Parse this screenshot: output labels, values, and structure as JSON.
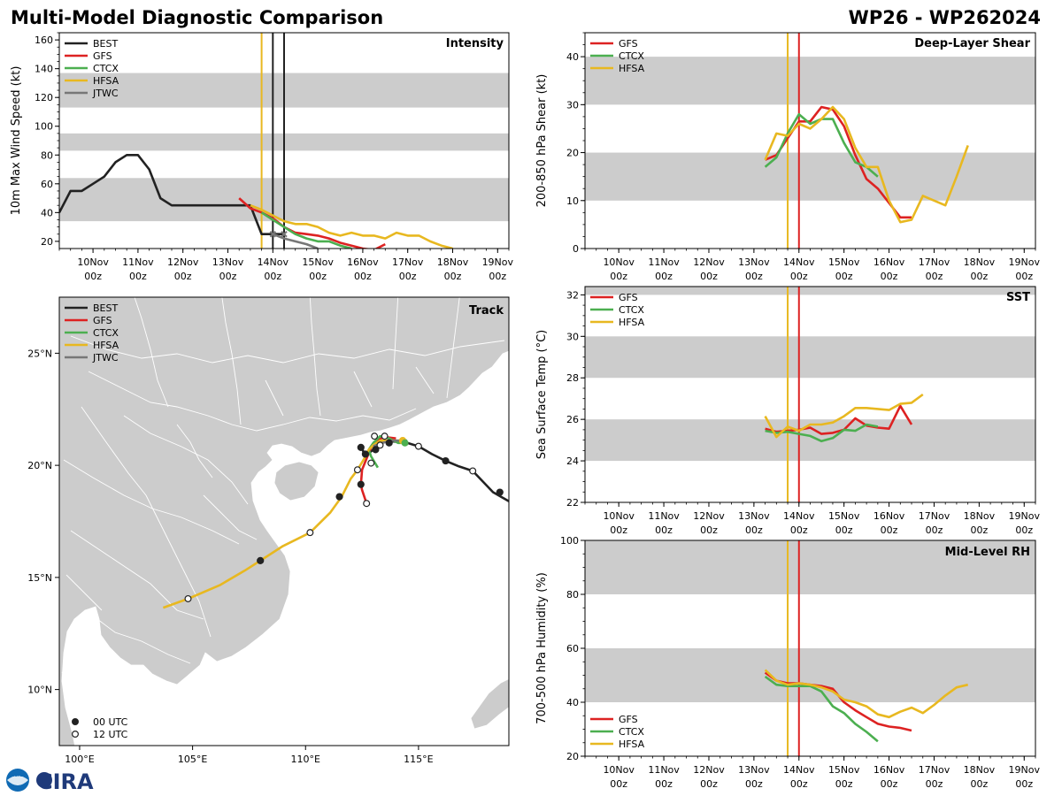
{
  "header": {
    "title": "Multi-Model Diagnostic Comparison",
    "storm_id": "WP26 - WP262024"
  },
  "logo": {
    "text": "CIRA",
    "noaa_text": "NOAA"
  },
  "colors": {
    "BEST": "#222222",
    "GFS": "#dd2222",
    "CTCX": "#4caf50",
    "HFSA": "#e8b820",
    "JTWC": "#777777",
    "band": "#cccccc",
    "land": "#cccccc",
    "border": "#ffffff"
  },
  "chart_data": [
    {
      "id": "intensity",
      "type": "line",
      "title": "Intensity",
      "ylabel": "10m Max Wind Speed (kt)",
      "xlabel": "",
      "ylim": [
        15,
        165
      ],
      "yticks": [
        20,
        40,
        60,
        80,
        100,
        120,
        140,
        160
      ],
      "xlim": [
        9.25,
        19.25
      ],
      "xtick_values": [
        10,
        11,
        12,
        13,
        14,
        15,
        16,
        17,
        18,
        19
      ],
      "xtick_labels": [
        "10Nov",
        "11Nov",
        "12Nov",
        "13Nov",
        "14Nov",
        "15Nov",
        "16Nov",
        "17Nov",
        "18Nov",
        "19Nov"
      ],
      "xtick_sub": "00z",
      "bands": [
        [
          34,
          64
        ],
        [
          83,
          95
        ],
        [
          113,
          137
        ]
      ],
      "vlines": [
        {
          "x": 13.75,
          "color": "HFSA"
        },
        {
          "x": 14.0,
          "color": "BEST"
        },
        {
          "x": 14.25,
          "color": "BEST"
        }
      ],
      "legend": [
        "BEST",
        "GFS",
        "CTCX",
        "HFSA",
        "JTWC"
      ],
      "series": [
        {
          "name": "BEST",
          "x": [
            9.25,
            9.5,
            9.75,
            10.0,
            10.25,
            10.5,
            10.75,
            11.0,
            11.25,
            11.5,
            11.75,
            12.0,
            12.5,
            13.0,
            13.5,
            13.75,
            14.0,
            14.25
          ],
          "y": [
            40,
            55,
            55,
            60,
            65,
            75,
            80,
            80,
            70,
            50,
            45,
            45,
            45,
            45,
            45,
            25,
            25,
            25
          ]
        },
        {
          "name": "GFS",
          "x": [
            13.25,
            13.5,
            13.75,
            14.0,
            14.25,
            14.5,
            14.75,
            15.0,
            15.25,
            15.5,
            15.75,
            16.0,
            16.25,
            16.5
          ],
          "y": [
            50,
            43,
            40,
            36,
            30,
            26,
            25,
            24,
            22,
            19,
            17,
            15,
            14,
            18
          ]
        },
        {
          "name": "CTCX",
          "x": [
            13.75,
            14.0,
            14.25,
            14.5,
            14.75,
            15.0,
            15.25,
            15.5,
            15.75
          ],
          "y": [
            40,
            35,
            30,
            25,
            22,
            20,
            20,
            17,
            15
          ]
        },
        {
          "name": "HFSA",
          "x": [
            13.5,
            13.75,
            14.0,
            14.25,
            14.5,
            14.75,
            15.0,
            15.25,
            15.5,
            15.75,
            16.0,
            16.25,
            16.5,
            16.75,
            17.0,
            17.25,
            17.5,
            17.75,
            18.0
          ],
          "y": [
            45,
            42,
            38,
            34,
            32,
            32,
            30,
            26,
            24,
            26,
            24,
            24,
            22,
            26,
            24,
            24,
            20,
            17,
            15
          ]
        },
        {
          "name": "JTWC",
          "x": [
            14.0,
            14.25,
            14.5,
            14.75,
            15.0
          ],
          "y": [
            25,
            22,
            20,
            18,
            15
          ]
        }
      ]
    },
    {
      "id": "shear",
      "type": "line",
      "title": "Deep-Layer Shear",
      "ylabel": "200-850 hPa Shear (kt)",
      "xlabel": "",
      "ylim": [
        0,
        45
      ],
      "yticks": [
        0,
        10,
        20,
        30,
        40
      ],
      "xlim": [
        9.25,
        19.25
      ],
      "xtick_values": [
        10,
        11,
        12,
        13,
        14,
        15,
        16,
        17,
        18,
        19
      ],
      "xtick_labels": [
        "10Nov",
        "11Nov",
        "12Nov",
        "13Nov",
        "14Nov",
        "15Nov",
        "16Nov",
        "17Nov",
        "18Nov",
        "19Nov"
      ],
      "xtick_sub": "00z",
      "bands": [
        [
          10,
          20
        ],
        [
          30,
          40
        ]
      ],
      "vlines": [
        {
          "x": 13.75,
          "color": "HFSA"
        },
        {
          "x": 14.0,
          "color": "GFS"
        }
      ],
      "legend": [
        "GFS",
        "CTCX",
        "HFSA"
      ],
      "series": [
        {
          "name": "GFS",
          "x": [
            13.25,
            13.5,
            13.75,
            14.0,
            14.25,
            14.5,
            14.75,
            15.0,
            15.25,
            15.5,
            15.75,
            16.0,
            16.25,
            16.5
          ],
          "y": [
            18.5,
            19.5,
            23,
            26.5,
            26.5,
            29.5,
            29,
            25.5,
            19.5,
            14.5,
            12.5,
            9.5,
            6.5,
            6.5
          ]
        },
        {
          "name": "CTCX",
          "x": [
            13.25,
            13.5,
            13.75,
            14.0,
            14.25,
            14.5,
            14.75,
            15.0,
            15.25,
            15.5,
            15.75
          ],
          "y": [
            17,
            19,
            24,
            28,
            26,
            27,
            27,
            22,
            18,
            17,
            15
          ]
        },
        {
          "name": "HFSA",
          "x": [
            13.25,
            13.5,
            13.75,
            14.0,
            14.25,
            14.5,
            14.75,
            15.0,
            15.25,
            15.5,
            15.75,
            16.0,
            16.25,
            16.5,
            16.75,
            17.0,
            17.25,
            17.5,
            17.75
          ],
          "y": [
            18.5,
            24,
            23.5,
            26,
            25,
            27,
            29.5,
            27,
            21,
            17,
            17,
            10,
            5.5,
            6,
            11,
            10,
            9,
            15,
            21.5
          ]
        }
      ]
    },
    {
      "id": "sst",
      "type": "line",
      "title": "SST",
      "ylabel": "Sea Surface Temp (°C)",
      "xlabel": "",
      "ylim": [
        22,
        32.4
      ],
      "yticks": [
        22,
        24,
        26,
        28,
        30,
        32
      ],
      "xlim": [
        9.25,
        19.25
      ],
      "xtick_values": [
        10,
        11,
        12,
        13,
        14,
        15,
        16,
        17,
        18,
        19
      ],
      "xtick_labels": [
        "10Nov",
        "11Nov",
        "12Nov",
        "13Nov",
        "14Nov",
        "15Nov",
        "16Nov",
        "17Nov",
        "18Nov",
        "19Nov"
      ],
      "xtick_sub": "00z",
      "bands": [
        [
          24,
          26
        ],
        [
          28,
          30
        ],
        [
          32,
          34
        ]
      ],
      "vlines": [
        {
          "x": 13.75,
          "color": "HFSA"
        },
        {
          "x": 14.0,
          "color": "GFS"
        }
      ],
      "legend": [
        "GFS",
        "CTCX",
        "HFSA"
      ],
      "series": [
        {
          "name": "GFS",
          "x": [
            13.25,
            13.5,
            13.75,
            14.0,
            14.25,
            14.5,
            14.75,
            15.0,
            15.25,
            15.5,
            15.75,
            16.0,
            16.25,
            16.5
          ],
          "y": [
            25.55,
            25.4,
            25.45,
            25.5,
            25.6,
            25.3,
            25.35,
            25.5,
            26.05,
            25.7,
            25.6,
            25.55,
            26.65,
            25.75
          ]
        },
        {
          "name": "CTCX",
          "x": [
            13.25,
            13.5,
            13.75,
            14.0,
            14.25,
            14.5,
            14.75,
            15.0,
            15.25,
            15.5,
            15.75
          ],
          "y": [
            25.45,
            25.35,
            25.4,
            25.3,
            25.2,
            24.95,
            25.1,
            25.5,
            25.45,
            25.75,
            25.65
          ]
        },
        {
          "name": "HFSA",
          "x": [
            13.25,
            13.5,
            13.75,
            14.0,
            14.25,
            14.5,
            14.75,
            15.0,
            15.25,
            15.5,
            15.75,
            16.0,
            16.25,
            16.5,
            16.75
          ],
          "y": [
            26.15,
            25.15,
            25.65,
            25.45,
            25.75,
            25.75,
            25.85,
            26.15,
            26.55,
            26.55,
            26.5,
            26.45,
            26.75,
            26.8,
            27.2
          ]
        }
      ]
    },
    {
      "id": "rh",
      "type": "line",
      "title": "Mid-Level RH",
      "ylabel": "700-500 hPa Humidity (%)",
      "xlabel": "",
      "ylim": [
        20,
        100
      ],
      "yticks": [
        20,
        40,
        60,
        80,
        100
      ],
      "xlim": [
        9.25,
        19.25
      ],
      "xtick_values": [
        10,
        11,
        12,
        13,
        14,
        15,
        16,
        17,
        18,
        19
      ],
      "xtick_labels": [
        "10Nov",
        "11Nov",
        "12Nov",
        "13Nov",
        "14Nov",
        "15Nov",
        "16Nov",
        "17Nov",
        "18Nov",
        "19Nov"
      ],
      "xtick_sub": "00z",
      "bands": [
        [
          40,
          60
        ],
        [
          80,
          100
        ]
      ],
      "vlines": [
        {
          "x": 13.75,
          "color": "HFSA"
        },
        {
          "x": 14.0,
          "color": "GFS"
        }
      ],
      "legend": [
        "GFS",
        "CTCX",
        "HFSA"
      ],
      "series": [
        {
          "name": "GFS",
          "x": [
            13.25,
            13.5,
            13.75,
            14.0,
            14.25,
            14.5,
            14.75,
            15.0,
            15.25,
            15.5,
            15.75,
            16.0,
            16.25,
            16.5
          ],
          "y": [
            51,
            48,
            47,
            47,
            46.5,
            46,
            45,
            40,
            37,
            34.5,
            32,
            31,
            30.5,
            29.5
          ]
        },
        {
          "name": "CTCX",
          "x": [
            13.25,
            13.5,
            13.75,
            14.0,
            14.25,
            14.5,
            14.75,
            15.0,
            15.25,
            15.5,
            15.75
          ],
          "y": [
            49.5,
            46.5,
            46,
            46,
            46,
            44,
            38.5,
            36,
            32,
            29,
            25.5
          ]
        },
        {
          "name": "HFSA",
          "x": [
            13.25,
            13.5,
            13.75,
            14.0,
            14.25,
            14.5,
            14.75,
            15.0,
            15.25,
            15.5,
            15.75,
            16.0,
            16.25,
            16.5,
            16.75,
            17.0,
            17.25,
            17.5,
            17.75
          ],
          "y": [
            52,
            48,
            46.5,
            47,
            46.5,
            45.5,
            44,
            41,
            40,
            38.5,
            35.5,
            34.5,
            36.5,
            38,
            36,
            39,
            42.5,
            45.5,
            46.5
          ]
        }
      ]
    },
    {
      "id": "track",
      "type": "line",
      "title": "Track",
      "xlim": [
        99.1,
        119.0
      ],
      "ylim": [
        7.5,
        27.5
      ],
      "xticks": [
        100,
        105,
        110,
        115
      ],
      "xtick_labels": [
        "100°E",
        "105°E",
        "110°E",
        "115°E"
      ],
      "yticks": [
        10,
        15,
        20,
        25
      ],
      "ytick_labels": [
        "10°N",
        "15°N",
        "20°N",
        "25°N"
      ],
      "legend": [
        "BEST",
        "GFS",
        "CTCX",
        "HFSA",
        "JTWC"
      ],
      "marker_legend": [
        {
          "label": "00 UTC",
          "fill": "#222222"
        },
        {
          "label": "12 UTC",
          "fill": "#ffffff"
        }
      ],
      "series": [
        {
          "name": "BEST",
          "lon": [
            119.0,
            118.3,
            117.4,
            116.8,
            116.2,
            115.6,
            115.0,
            114.5,
            114.0,
            113.5,
            113.2,
            113.0,
            112.8,
            112.6,
            112.5
          ],
          "lat": [
            18.4,
            18.8,
            19.75,
            19.95,
            20.2,
            20.5,
            20.85,
            21.0,
            21.05,
            21.1,
            21.0,
            20.7,
            20.55,
            20.45,
            20.8
          ]
        },
        {
          "name": "GFS",
          "lon": [
            112.7,
            112.5,
            112.45,
            112.5,
            112.7,
            112.9,
            113.3,
            113.6,
            114.0
          ],
          "lat": [
            18.3,
            18.9,
            19.15,
            19.8,
            20.3,
            20.8,
            21.2,
            21.25,
            21.2
          ]
        },
        {
          "name": "CTCX",
          "lon": [
            113.2,
            112.9,
            112.8,
            113.0,
            113.3,
            113.7,
            114.1,
            114.5
          ],
          "lat": [
            19.9,
            20.4,
            20.7,
            21.0,
            21.3,
            21.2,
            21.0,
            21.0
          ]
        },
        {
          "name": "HFSA",
          "lon": [
            103.7,
            104.8,
            106.2,
            107.3,
            108.0,
            109.0,
            110.2,
            111.1,
            111.6,
            112.0,
            112.3,
            112.6,
            112.8,
            113.0,
            113.3,
            113.8,
            114.4
          ],
          "lat": [
            13.65,
            14.05,
            14.65,
            15.3,
            15.75,
            16.4,
            17.0,
            17.9,
            18.6,
            19.4,
            19.8,
            20.3,
            20.7,
            20.9,
            21.1,
            21.1,
            21.1
          ]
        },
        {
          "name": "JTWC",
          "lon": [
            113.0,
            113.4,
            113.8,
            114.1,
            114.5
          ],
          "lat": [
            20.85,
            21.0,
            21.1,
            21.1,
            21.1
          ]
        }
      ],
      "points_00utc": [
        [
          112.45,
          20.8
        ],
        [
          112.65,
          20.5
        ],
        [
          113.1,
          20.7
        ],
        [
          112.45,
          19.15
        ],
        [
          111.5,
          18.6
        ],
        [
          108.0,
          15.75
        ],
        [
          113.7,
          21.0
        ],
        [
          116.2,
          20.2
        ],
        [
          118.6,
          18.8
        ]
      ],
      "points_12utc": [
        [
          113.05,
          21.3
        ],
        [
          113.5,
          21.3
        ],
        [
          113.3,
          20.9
        ],
        [
          112.9,
          20.1
        ],
        [
          112.3,
          19.8
        ],
        [
          112.7,
          18.3
        ],
        [
          110.2,
          17.0
        ],
        [
          104.8,
          14.05
        ],
        [
          115.0,
          20.85
        ],
        [
          117.4,
          19.75
        ]
      ],
      "hfsa_point": [
        114.3,
        21.1
      ],
      "ctcx_point": [
        114.4,
        21.0
      ]
    }
  ]
}
